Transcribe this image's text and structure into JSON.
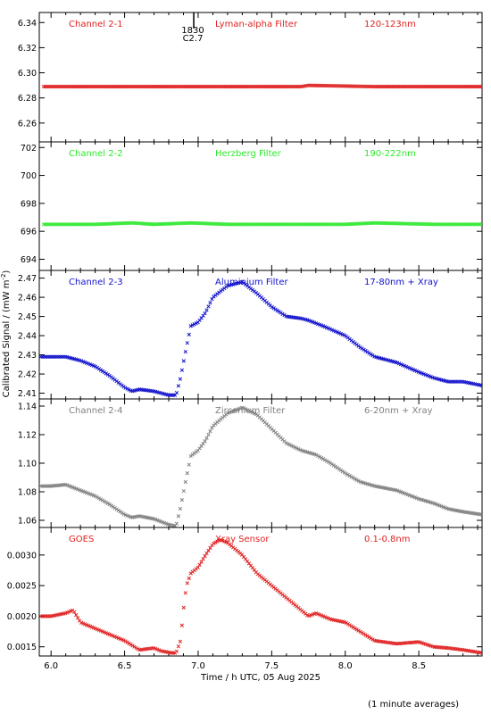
{
  "ylabel": "Calibrated Signal / (mW m",
  "ylabel_sup": "-2",
  "ylabel_end": ")",
  "xlabel": "Time / h UTC, 05 Aug 2025",
  "footnote": "(1 minute averages)",
  "xlim": [
    5.92,
    8.93
  ],
  "xticks": [
    "6.0",
    "6.5",
    "7.0",
    "7.5",
    "8.0",
    "8.5"
  ],
  "marker": {
    "label_top": "1830",
    "label_bottom": "C2.7",
    "x": 6.97
  },
  "chart_data": [
    {
      "type": "scatter",
      "channel": "Channel 2-1",
      "filter": "Lyman-alpha Filter",
      "band": "120-123nm",
      "color": "#e02020",
      "ylim": [
        6.245,
        6.348
      ],
      "yticks": [
        "6.26",
        "6.28",
        "6.30",
        "6.32",
        "6.34"
      ],
      "x": [
        5.95,
        6.3,
        6.7,
        7.0,
        7.3,
        7.7,
        7.75,
        8.2,
        8.6,
        8.93
      ],
      "y": [
        6.289,
        6.289,
        6.289,
        6.289,
        6.289,
        6.289,
        6.29,
        6.289,
        6.289,
        6.289
      ]
    },
    {
      "type": "scatter",
      "channel": "Channel 2-2",
      "filter": "Herzberg Filter",
      "band": "190-222nm",
      "color": "#2ee82e",
      "ylim": [
        693.2,
        702.4
      ],
      "yticks": [
        "694",
        "696",
        "698",
        "700",
        "702"
      ],
      "x": [
        5.95,
        6.3,
        6.55,
        6.7,
        6.95,
        7.2,
        7.6,
        8.0,
        8.2,
        8.6,
        8.93
      ],
      "y": [
        696.5,
        696.5,
        696.6,
        696.5,
        696.6,
        696.5,
        696.5,
        696.5,
        696.6,
        696.5,
        696.5
      ]
    },
    {
      "type": "scatter",
      "channel": "Channel 2-3",
      "filter": "Aluminium Filter",
      "band": "17-80nm + Xray",
      "color": "#1010cc",
      "ylim": [
        2.407,
        2.474
      ],
      "yticks": [
        "2.41",
        "2.42",
        "2.43",
        "2.44",
        "2.45",
        "2.46",
        "2.47"
      ],
      "x": [
        5.93,
        6.0,
        6.1,
        6.2,
        6.3,
        6.4,
        6.5,
        6.55,
        6.6,
        6.7,
        6.8,
        6.85,
        6.88,
        6.92,
        6.95,
        7.0,
        7.05,
        7.1,
        7.2,
        7.3,
        7.4,
        7.5,
        7.6,
        7.7,
        7.75,
        7.85,
        8.0,
        8.1,
        8.2,
        8.35,
        8.5,
        8.6,
        8.7,
        8.8,
        8.93
      ],
      "y": [
        2.429,
        2.429,
        2.429,
        2.427,
        2.424,
        2.419,
        2.413,
        2.411,
        2.412,
        2.411,
        2.409,
        2.409,
        2.418,
        2.434,
        2.445,
        2.447,
        2.452,
        2.46,
        2.466,
        2.468,
        2.462,
        2.455,
        2.45,
        2.449,
        2.448,
        2.445,
        2.44,
        2.434,
        2.429,
        2.426,
        2.421,
        2.418,
        2.416,
        2.416,
        2.414
      ]
    },
    {
      "type": "scatter",
      "channel": "Channel 2-4",
      "filter": "Zirconium Filter",
      "band": "6-20nm + Xray",
      "color": "#808080",
      "ylim": [
        1.055,
        1.145
      ],
      "yticks": [
        "1.06",
        "1.08",
        "1.10",
        "1.12",
        "1.14"
      ],
      "x": [
        5.93,
        6.0,
        6.1,
        6.2,
        6.3,
        6.4,
        6.5,
        6.55,
        6.6,
        6.7,
        6.8,
        6.85,
        6.88,
        6.92,
        6.95,
        7.0,
        7.05,
        7.1,
        7.2,
        7.3,
        7.4,
        7.5,
        7.6,
        7.7,
        7.8,
        7.9,
        8.0,
        8.1,
        8.2,
        8.35,
        8.5,
        8.6,
        8.7,
        8.8,
        8.93
      ],
      "y": [
        1.084,
        1.084,
        1.085,
        1.081,
        1.077,
        1.071,
        1.064,
        1.062,
        1.063,
        1.061,
        1.057,
        1.056,
        1.069,
        1.09,
        1.105,
        1.109,
        1.116,
        1.126,
        1.135,
        1.139,
        1.134,
        1.124,
        1.114,
        1.109,
        1.106,
        1.1,
        1.093,
        1.087,
        1.084,
        1.081,
        1.075,
        1.072,
        1.068,
        1.066,
        1.064
      ]
    },
    {
      "type": "scatter",
      "channel": "GOES",
      "filter": "Xray Sensor",
      "band": "0.1-0.8nm",
      "color": "#e02020",
      "ylim": [
        0.00135,
        0.00345
      ],
      "yticks": [
        "0.0015",
        "0.0020",
        "0.0025",
        "0.0030"
      ],
      "x": [
        5.93,
        6.0,
        6.1,
        6.15,
        6.2,
        6.3,
        6.4,
        6.5,
        6.6,
        6.7,
        6.75,
        6.82,
        6.85,
        6.88,
        6.9,
        6.92,
        6.95,
        7.0,
        7.05,
        7.1,
        7.15,
        7.2,
        7.3,
        7.4,
        7.5,
        7.6,
        7.7,
        7.75,
        7.8,
        7.9,
        8.0,
        8.1,
        8.2,
        8.35,
        8.5,
        8.6,
        8.7,
        8.8,
        8.93
      ],
      "y": [
        0.002,
        0.002,
        0.00205,
        0.0021,
        0.0019,
        0.0018,
        0.0017,
        0.0016,
        0.00145,
        0.00148,
        0.00143,
        0.0014,
        0.0014,
        0.0016,
        0.0021,
        0.0025,
        0.0027,
        0.0028,
        0.003,
        0.00318,
        0.00325,
        0.0032,
        0.003,
        0.0027,
        0.0025,
        0.0023,
        0.0021,
        0.002,
        0.00205,
        0.00195,
        0.0019,
        0.00175,
        0.0016,
        0.00155,
        0.00158,
        0.0015,
        0.00148,
        0.00145,
        0.0014
      ]
    }
  ]
}
